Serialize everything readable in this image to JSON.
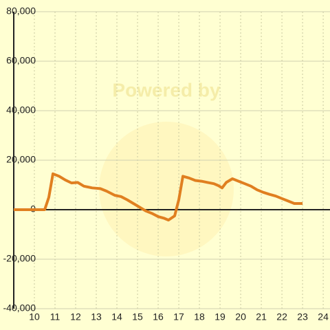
{
  "chart_data": {
    "type": "line",
    "annotation": "Powered by",
    "x": [
      9,
      10.5,
      10.7,
      10.9,
      11.2,
      11.5,
      11.8,
      12.1,
      12.4,
      12.8,
      13.2,
      13.5,
      13.9,
      14.2,
      14.5,
      14.8,
      15.1,
      15.4,
      15.7,
      16.0,
      16.3,
      16.5,
      16.8,
      17.0,
      17.2,
      17.5,
      17.8,
      18.1,
      18.4,
      18.7,
      18.9,
      19.1,
      19.3,
      19.6,
      19.9,
      20.2,
      20.5,
      20.8,
      21.1,
      21.4,
      21.7,
      22.0,
      22.3,
      22.6,
      23.0
    ],
    "series": [
      {
        "color": "#e07f20",
        "values": [
          0,
          0,
          5000,
          14500,
          13500,
          12000,
          10800,
          11000,
          9500,
          8800,
          8500,
          7500,
          5800,
          5300,
          4000,
          2500,
          1000,
          -500,
          -1500,
          -2800,
          -3500,
          -4200,
          -2500,
          4000,
          13500,
          12800,
          11800,
          11500,
          11000,
          10500,
          9800,
          8800,
          11000,
          12500,
          11500,
          10500,
          9500,
          8000,
          7000,
          6200,
          5500,
          4500,
          3500,
          2500,
          2500
        ]
      }
    ],
    "xlim": [
      9,
      24.33
    ],
    "xticks": [
      10,
      11,
      12,
      13,
      14,
      15,
      16,
      17,
      18,
      19,
      20,
      21,
      22,
      23,
      24
    ],
    "ylim": [
      -40000,
      80000
    ],
    "yticks": [
      {
        "value": -40000,
        "label": "-40,000"
      },
      {
        "value": -20000,
        "label": "-20,000"
      },
      0,
      {
        "value": 20000,
        "label": "20,000"
      },
      {
        "value": 40000,
        "label": "40,000"
      },
      {
        "value": 60000,
        "label": "60,000"
      },
      {
        "value": 80000,
        "label": "80,000"
      }
    ],
    "grid": true
  }
}
